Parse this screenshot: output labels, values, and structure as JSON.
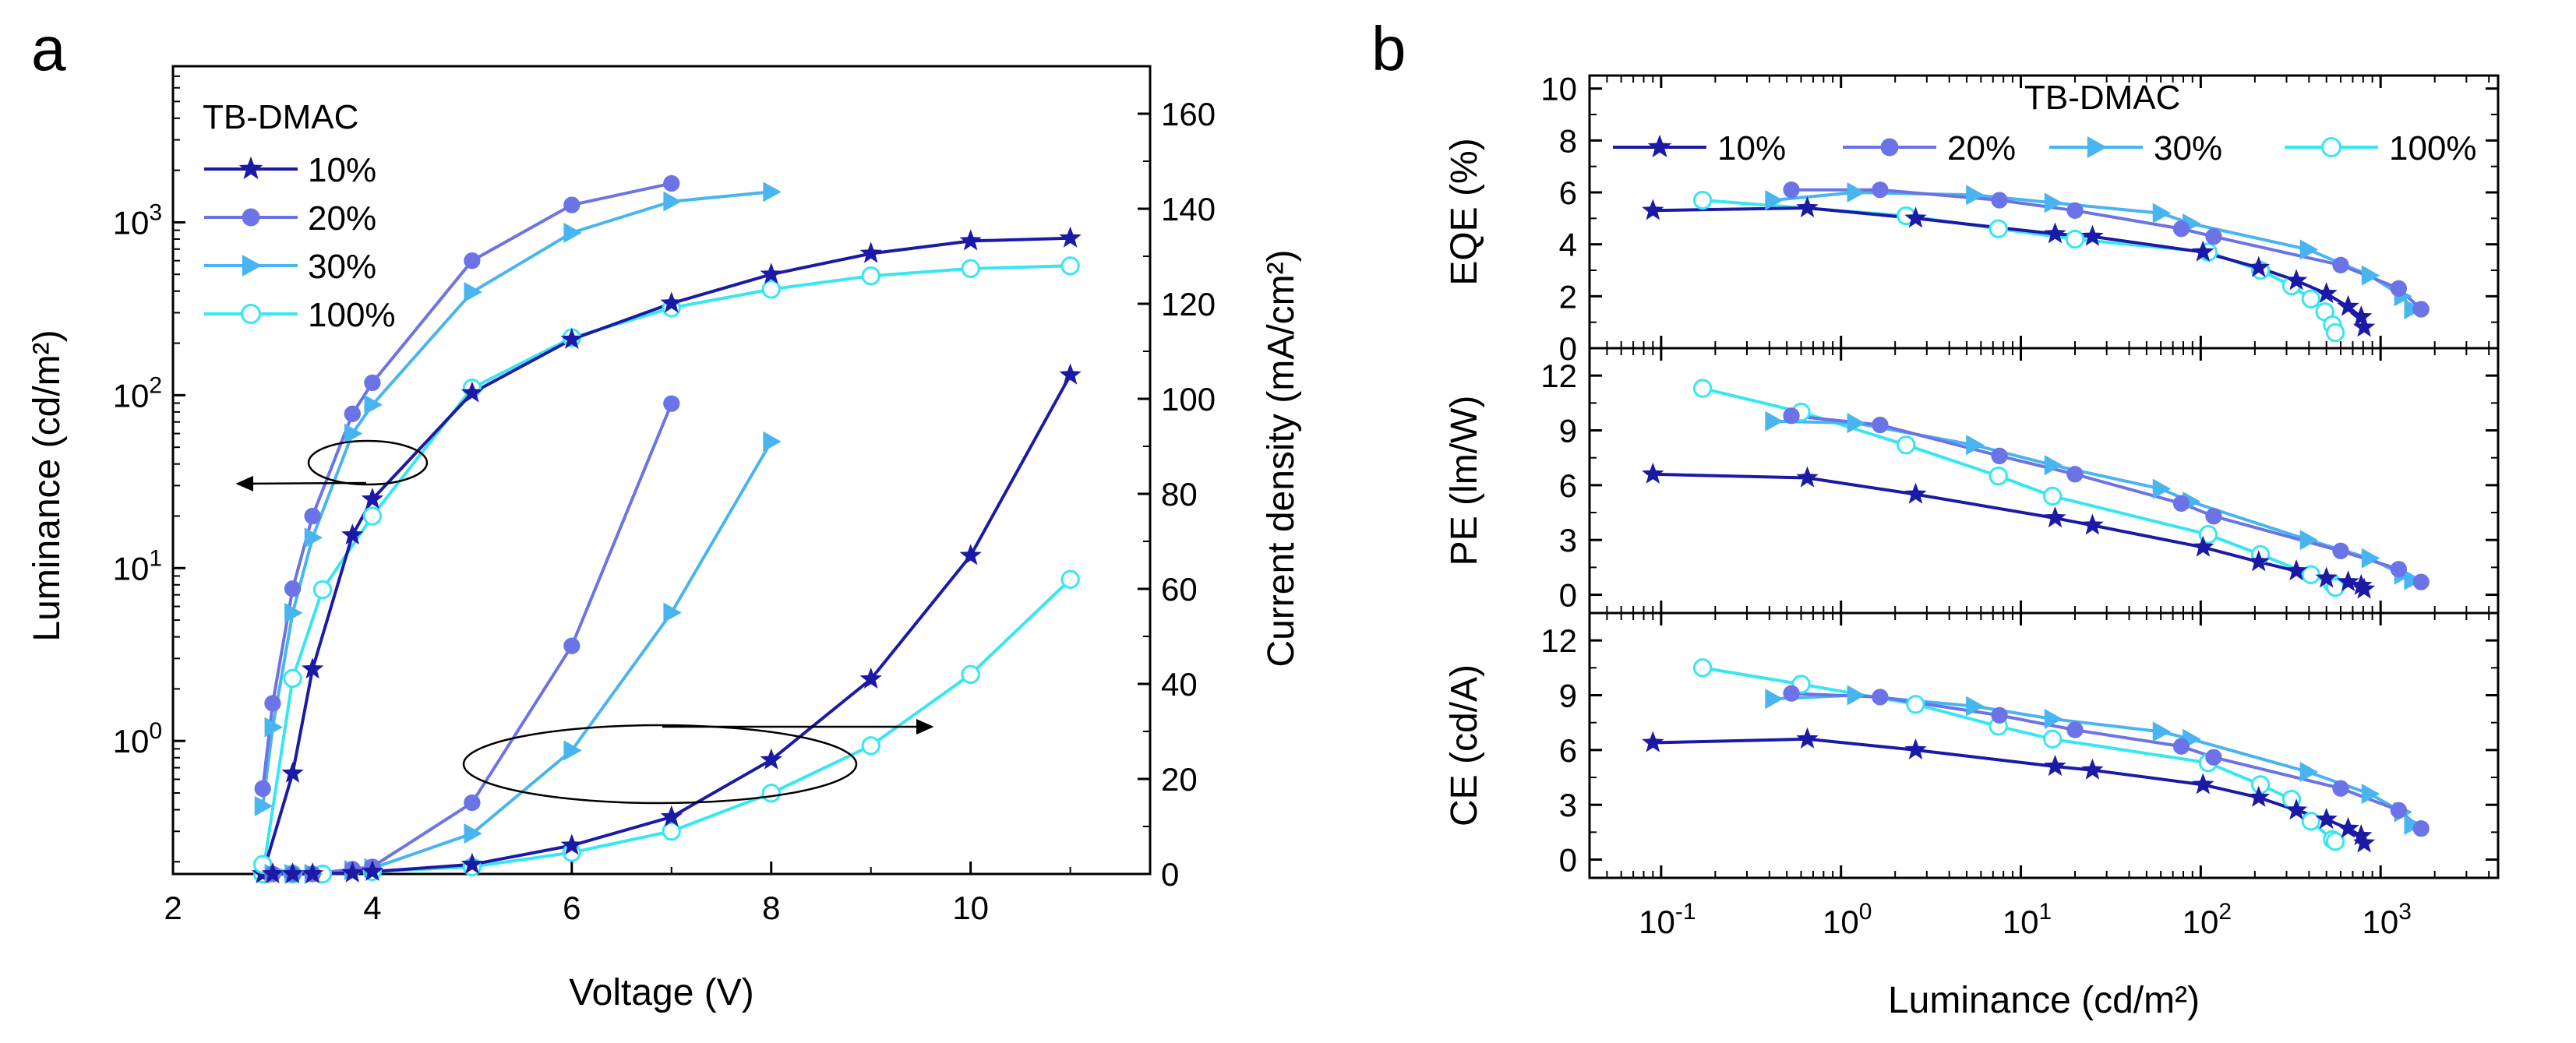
{
  "figure": {
    "panels": [
      "a",
      "b"
    ],
    "colors": {
      "10%": "#1a1aa6",
      "20%": "#6b73e6",
      "30%": "#48b4f0",
      "100%": "#36e6f2",
      "axis": "#000000"
    }
  },
  "chart_data": [
    {
      "panel": "a",
      "type": "line",
      "title": "",
      "legend_title": "TB-DMAC",
      "legend_position": "top-left",
      "xlabel": "Voltage (V)",
      "ylabel_left": "Luminance (cd/m²)",
      "ylabel_right": "Current density (mA/cm²)",
      "x_ticks": [
        "2",
        "4",
        "6",
        "8",
        "10"
      ],
      "xlim": [
        2,
        11.8
      ],
      "y_left_scale": "log",
      "y_left_lim": [
        0.17,
        8000
      ],
      "y_left_ticks": [
        {
          "value": 1,
          "base": "10",
          "exp": "0"
        },
        {
          "value": 10,
          "base": "10",
          "exp": "1"
        },
        {
          "value": 100,
          "base": "10",
          "exp": "2"
        },
        {
          "value": 1000,
          "base": "10",
          "exp": "3"
        }
      ],
      "y_right_lim": [
        0,
        170
      ],
      "y_right_ticks": [
        "0",
        "20",
        "40",
        "60",
        "80",
        "100",
        "120",
        "140",
        "160"
      ],
      "luminance_series": [
        {
          "name": "10%",
          "marker": "star",
          "x": [
            2.9,
            3.2,
            3.4,
            3.8,
            4,
            5,
            6,
            7,
            8,
            9,
            10,
            11
          ],
          "values": [
            0.17,
            0.65,
            2.6,
            15.5,
            25,
            103,
            210,
            340,
            500,
            660,
            780,
            810
          ]
        },
        {
          "name": "20%",
          "marker": "circle",
          "x": [
            2.9,
            3.0,
            3.2,
            3.4,
            3.8,
            4,
            5,
            6,
            7
          ],
          "values": [
            0.53,
            1.65,
            7.6,
            20,
            78,
            118,
            600,
            1260,
            1680
          ]
        },
        {
          "name": "30%",
          "marker": "triangle-right",
          "x": [
            2.9,
            3.0,
            3.2,
            3.4,
            3.8,
            4,
            5,
            6,
            7,
            8
          ],
          "values": [
            0.42,
            1.2,
            5.5,
            15,
            60,
            88,
            395,
            870,
            1320,
            1500
          ]
        },
        {
          "name": "100%",
          "marker": "open-circle",
          "x": [
            2.9,
            3.2,
            3.5,
            4,
            5,
            6,
            7,
            8,
            9,
            10,
            11
          ],
          "values": [
            0.17,
            2.3,
            7.5,
            20,
            110,
            215,
            320,
            410,
            490,
            540,
            560
          ]
        }
      ],
      "current_density_series": [
        {
          "name": "10%",
          "marker": "star",
          "x": [
            3.0,
            3.2,
            3.4,
            3.8,
            4,
            5,
            6,
            7,
            8,
            9,
            10,
            11
          ],
          "values": [
            0,
            0,
            0,
            0.2,
            0.5,
            2,
            6,
            12,
            24,
            41,
            67,
            105
          ]
        },
        {
          "name": "20%",
          "marker": "circle",
          "x": [
            3.0,
            3.2,
            3.4,
            3.8,
            4,
            5,
            6,
            7
          ],
          "values": [
            0,
            0,
            0,
            1,
            1.5,
            15,
            48,
            99
          ]
        },
        {
          "name": "30%",
          "marker": "triangle-right",
          "x": [
            3.0,
            3.2,
            3.4,
            3.8,
            4,
            5,
            6,
            7,
            8
          ],
          "values": [
            0,
            0,
            0,
            0.8,
            1.2,
            8.5,
            26,
            55,
            91
          ]
        },
        {
          "name": "100%",
          "marker": "open-circle",
          "x": [
            2.9,
            3.2,
            3.5,
            4,
            5,
            6,
            7,
            8,
            9,
            10,
            11
          ],
          "values": [
            2,
            0,
            0,
            0.5,
            1.5,
            4.5,
            9,
            17,
            27,
            42,
            62
          ]
        }
      ],
      "annotations": [
        {
          "target_axis": "left",
          "description": "ellipse with arrow pointing to left axis"
        },
        {
          "target_axis": "right",
          "description": "ellipse with arrow pointing to right axis"
        }
      ]
    },
    {
      "panel": "b",
      "type": "line",
      "title": "",
      "legend_title": "TB-DMAC",
      "legend_position": "top",
      "xlabel": "Luminance (cd/m²)",
      "x_scale": "log",
      "xlim": [
        0.04,
        4500
      ],
      "x_ticks": [
        {
          "value": 0.1,
          "base": "10",
          "exp": "-1"
        },
        {
          "value": 1,
          "base": "10",
          "exp": "0"
        },
        {
          "value": 10,
          "base": "10",
          "exp": "1"
        },
        {
          "value": 100,
          "base": "10",
          "exp": "2"
        },
        {
          "value": 1000,
          "base": "10",
          "exp": "3"
        }
      ],
      "subplots": [
        {
          "ylabel": "EQE (%)",
          "ylim": [
            0,
            10.5
          ],
          "y_ticks": [
            "0",
            "2",
            "4",
            "6",
            "8",
            "10"
          ],
          "series": [
            {
              "name": "10%",
              "x": [
                0.09,
                0.65,
                2.6,
                15.5,
                25,
                103,
                210,
                340,
                500,
                660,
                780,
                810
              ],
              "values": [
                5.3,
                5.4,
                5.0,
                4.4,
                4.3,
                3.7,
                3.1,
                2.6,
                2.1,
                1.6,
                1.2,
                0.8
              ]
            },
            {
              "name": "20%",
              "x": [
                0.53,
                1.65,
                7.6,
                20,
                78,
                118,
                600,
                1260,
                1680
              ],
              "values": [
                6.1,
                6.1,
                5.7,
                5.3,
                4.6,
                4.3,
                3.2,
                2.3,
                1.5
              ]
            },
            {
              "name": "30%",
              "x": [
                0.42,
                1.2,
                5.5,
                15,
                60,
                88,
                395,
                870,
                1320,
                1500
              ],
              "values": [
                5.7,
                6.0,
                5.9,
                5.6,
                5.2,
                4.8,
                3.8,
                2.8,
                2.0,
                1.5
              ]
            },
            {
              "name": "100%",
              "x": [
                0.17,
                2.3,
                7.5,
                20,
                110,
                215,
                320,
                410,
                490,
                540,
                560
              ],
              "values": [
                5.7,
                5.1,
                4.6,
                4.2,
                3.7,
                3.0,
                2.4,
                1.9,
                1.4,
                0.9,
                0.6
              ]
            }
          ]
        },
        {
          "ylabel": "PE (lm/W)",
          "ylim": [
            -1,
            13.5
          ],
          "y_ticks": [
            "0",
            "3",
            "6",
            "9",
            "12"
          ],
          "series": [
            {
              "name": "10%",
              "x": [
                0.09,
                0.65,
                2.6,
                15.5,
                25,
                103,
                210,
                340,
                500,
                660,
                780,
                810
              ],
              "values": [
                6.6,
                6.4,
                5.5,
                4.2,
                3.8,
                2.6,
                1.8,
                1.3,
                0.9,
                0.7,
                0.5,
                0.3
              ]
            },
            {
              "name": "20%",
              "x": [
                0.53,
                1.65,
                7.6,
                20,
                78,
                118,
                600,
                1260,
                1680
              ],
              "values": [
                9.8,
                9.3,
                7.6,
                6.6,
                5.0,
                4.3,
                2.4,
                1.4,
                0.7
              ]
            },
            {
              "name": "30%",
              "x": [
                0.42,
                1.2,
                5.5,
                15,
                60,
                88,
                395,
                870,
                1320,
                1500
              ],
              "values": [
                9.5,
                9.4,
                8.2,
                7.1,
                5.8,
                5.1,
                3.0,
                2.0,
                1.1,
                0.8
              ]
            },
            {
              "name": "100%",
              "x": [
                0.17,
                0.6,
                2.3,
                7.5,
                15,
                110,
                215,
                410,
                540,
                560
              ],
              "values": [
                11.3,
                10.0,
                8.2,
                6.5,
                5.4,
                3.3,
                2.2,
                1.1,
                0.6,
                0.4
              ]
            }
          ]
        },
        {
          "ylabel": "CE (cd/A)",
          "ylim": [
            -1,
            13.5
          ],
          "y_ticks": [
            "0",
            "3",
            "6",
            "9",
            "12"
          ],
          "series": [
            {
              "name": "10%",
              "x": [
                0.09,
                0.65,
                2.6,
                15.5,
                25,
                103,
                210,
                340,
                500,
                660,
                780,
                810
              ],
              "values": [
                6.4,
                6.6,
                6.0,
                5.1,
                4.9,
                4.1,
                3.4,
                2.7,
                2.2,
                1.7,
                1.3,
                0.9
              ]
            },
            {
              "name": "20%",
              "x": [
                0.53,
                1.65,
                7.6,
                20,
                78,
                118,
                600,
                1260,
                1680
              ],
              "values": [
                9.1,
                8.9,
                7.9,
                7.1,
                6.2,
                5.6,
                3.9,
                2.7,
                1.7
              ]
            },
            {
              "name": "30%",
              "x": [
                0.42,
                1.2,
                5.5,
                15,
                60,
                88,
                395,
                870,
                1320,
                1500
              ],
              "values": [
                8.8,
                9.0,
                8.4,
                7.7,
                7.0,
                6.6,
                4.8,
                3.6,
                2.6,
                1.9
              ]
            },
            {
              "name": "100%",
              "x": [
                0.17,
                0.6,
                2.6,
                7.5,
                15,
                110,
                215,
                320,
                410,
                540,
                560
              ],
              "values": [
                10.5,
                9.6,
                8.5,
                7.3,
                6.6,
                5.3,
                4.1,
                3.3,
                2.1,
                1.1,
                1.0
              ]
            }
          ]
        }
      ]
    }
  ]
}
